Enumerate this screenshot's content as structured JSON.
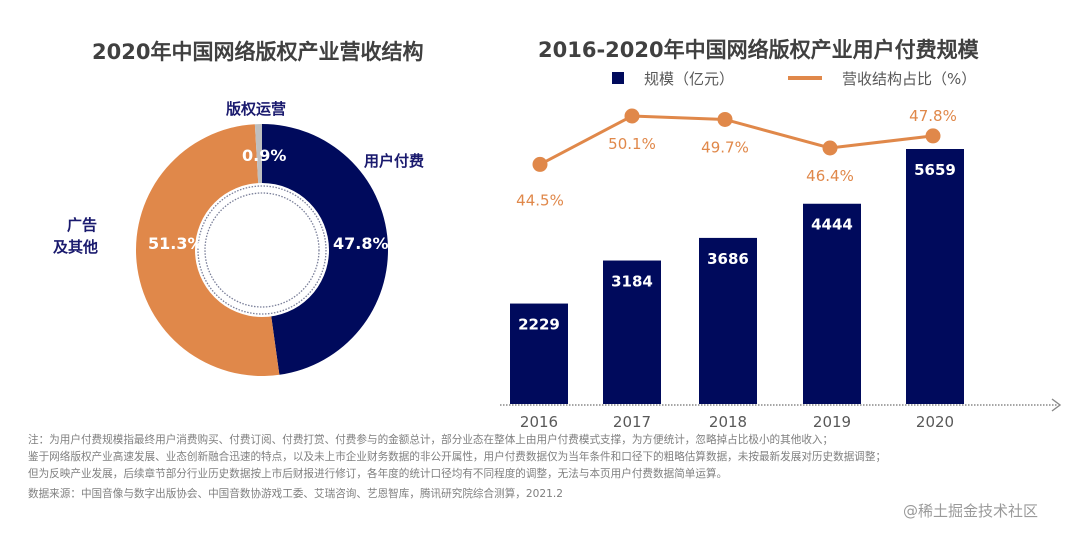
{
  "chart_data": [
    {
      "type": "pie",
      "variant": "donut",
      "title": "2020年中国网络版权产业营收结构",
      "slices": [
        {
          "label": "用户付费",
          "value": 47.8,
          "value_label": "47.8%",
          "color": "#000a5c"
        },
        {
          "label": "广告及其他",
          "label_lines": [
            "广告",
            "及其他"
          ],
          "value": 51.3,
          "value_label": "51.3%",
          "color": "#e0884a"
        },
        {
          "label": "版权运营",
          "value": 0.9,
          "value_label": "0.9%",
          "color": "#bfbfbf"
        }
      ]
    },
    {
      "type": "bar+line",
      "title": "2016-2020年中国网络版权产业用户付费规模",
      "categories": [
        "2016",
        "2017",
        "2018",
        "2019",
        "2020"
      ],
      "series": [
        {
          "name": "规模（亿元）",
          "type": "bar",
          "values": [
            2229,
            3184,
            3686,
            4444,
            5659
          ],
          "color": "#000a5c"
        },
        {
          "name": "营收结构占比（%）",
          "type": "line",
          "values": [
            44.5,
            50.1,
            49.7,
            46.4,
            47.8
          ],
          "value_labels": [
            "44.5%",
            "50.1%",
            "49.7%",
            "46.4%",
            "47.8%"
          ],
          "color": "#e0884a"
        }
      ],
      "legend": "top",
      "grid": false,
      "xlabel": "",
      "ylabel": ""
    }
  ],
  "notes": {
    "lines": [
      "注：为用户付费规模指最终用户消费购买、付费订阅、付费打赏、付费参与的金额总计，部分业态在整体上由用户付费模式支撑，为方便统计，忽略掉占比极小的其他收入；",
      "鉴于网络版权产业高速发展、业态创新融合迅速的特点，以及未上市企业财务数据的非公开属性，用户付费数据仅为当年条件和口径下的粗略估算数据，未按最新发展对历史数据调整；",
      "但为反映产业发展，后续章节部分行业历史数据按上市后财报进行修订，各年度的统计口径均有不同程度的调整，无法与本页用户付费数据简单运算。"
    ],
    "source": "数据来源：中国音像与数字出版协会、中国音数协游戏工委、艾瑞咨询、艺恩智库，腾讯研究院综合测算，2021.2"
  },
  "watermark": "@稀土掘金技术社区"
}
